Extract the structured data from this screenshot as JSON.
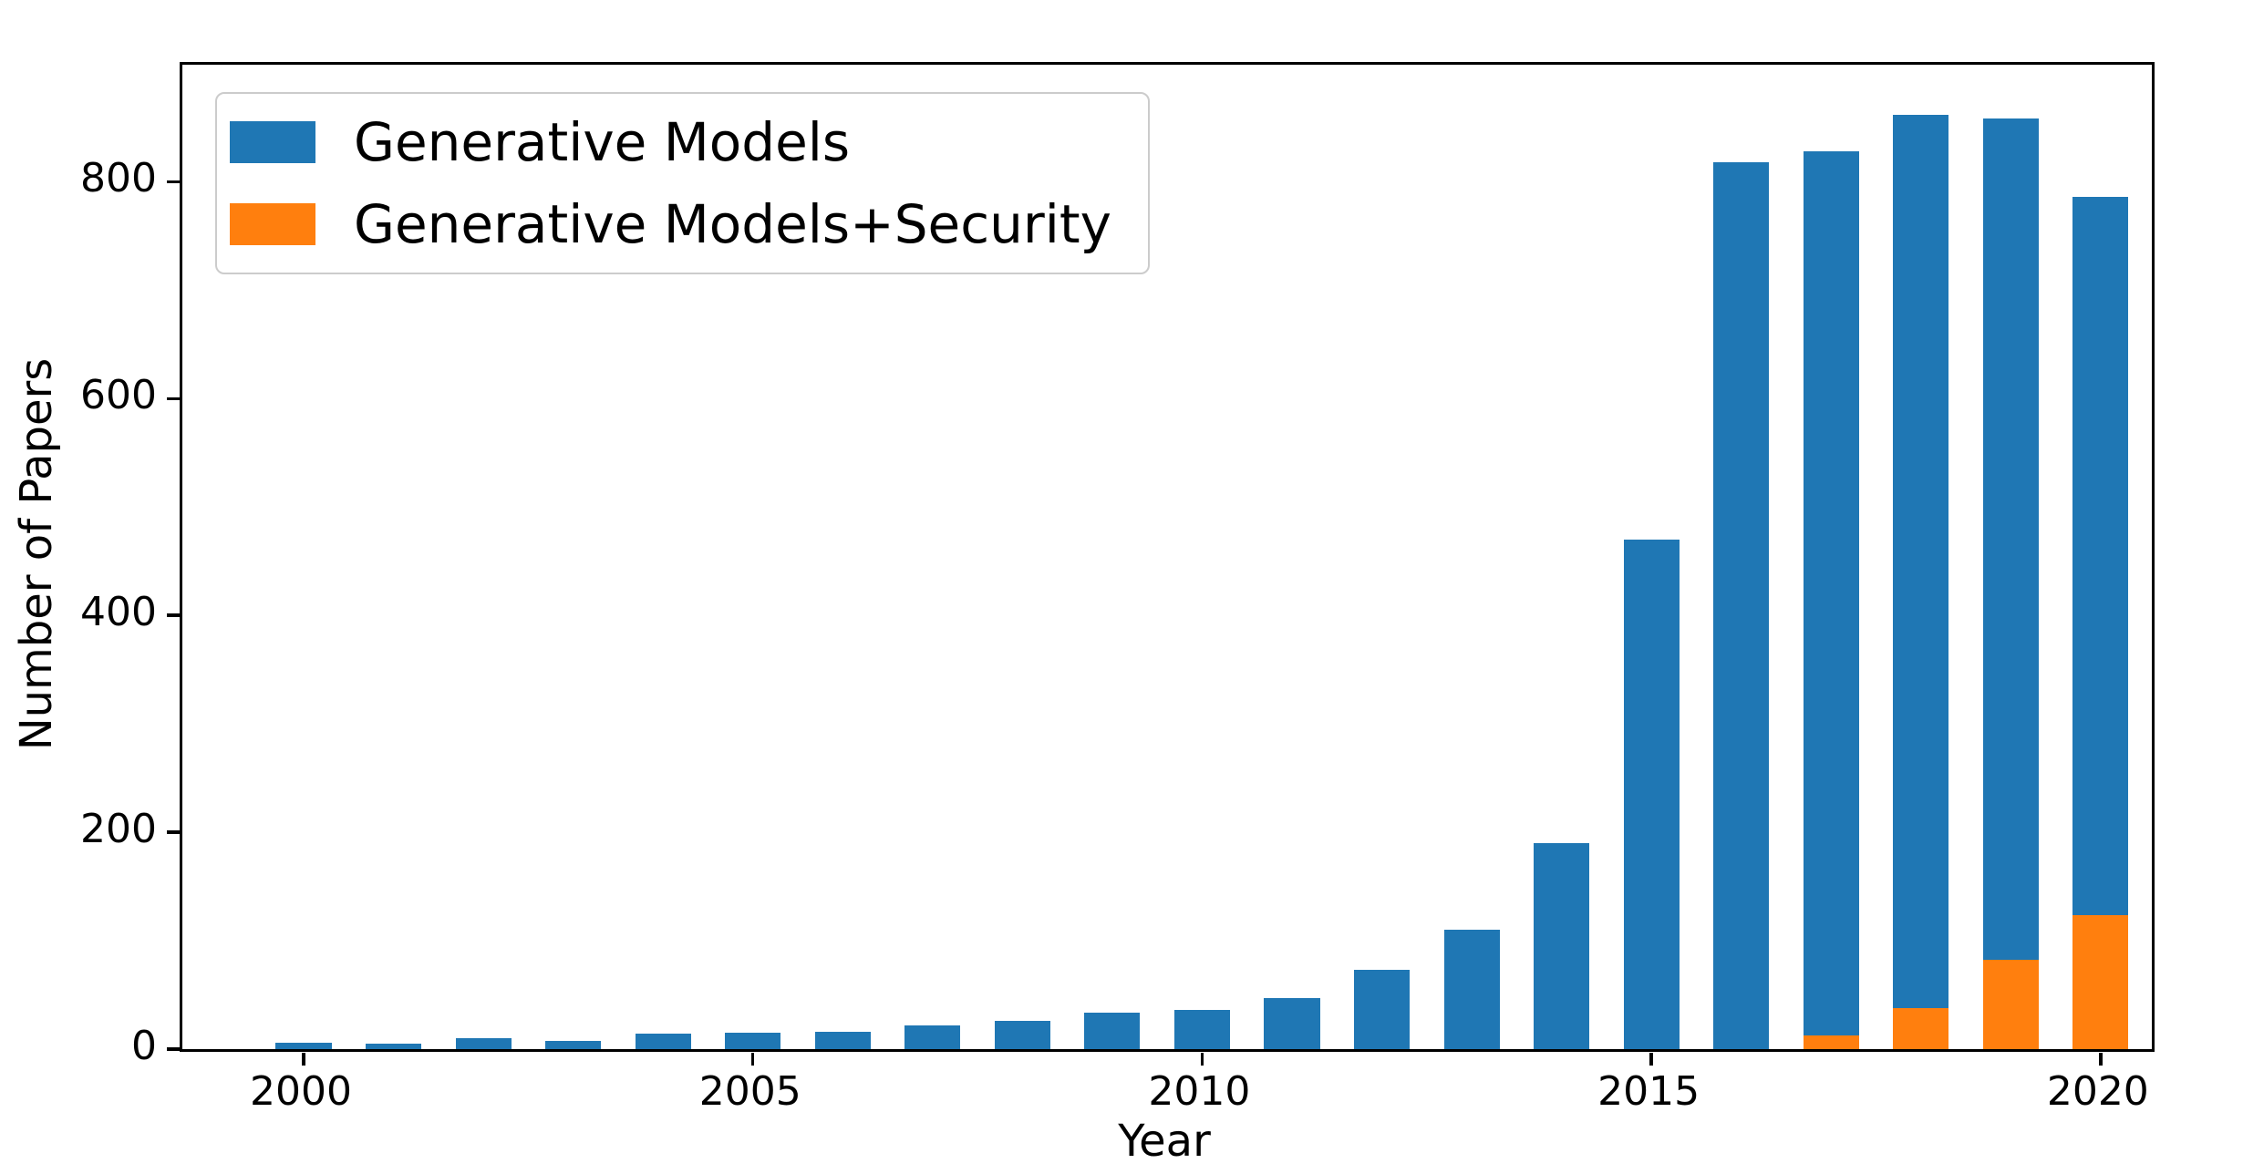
{
  "chart_data": {
    "type": "bar",
    "title": "",
    "xlabel": "Year",
    "ylabel": "Number of Papers",
    "x": [
      2000,
      2001,
      2002,
      2003,
      2004,
      2005,
      2006,
      2007,
      2008,
      2009,
      2010,
      2011,
      2012,
      2013,
      2014,
      2015,
      2016,
      2017,
      2018,
      2019,
      2020
    ],
    "series": [
      {
        "name": "Generative Models",
        "color": "#1f77b4",
        "values": [
          6,
          5,
          10,
          8,
          14,
          15,
          16,
          22,
          26,
          34,
          36,
          47,
          73,
          110,
          190,
          470,
          818,
          828,
          862,
          858,
          786
        ]
      },
      {
        "name": "Generative Models+Security",
        "color": "#ff7f0e",
        "values": [
          0,
          0,
          0,
          0,
          0,
          0,
          0,
          0,
          0,
          0,
          0,
          0,
          0,
          0,
          0,
          0,
          0,
          13,
          38,
          82,
          124
        ]
      }
    ],
    "overlay": "second series drawn in front of first, both baselined at 0",
    "xticks": [
      2000,
      2005,
      2010,
      2015,
      2020
    ],
    "yticks": [
      0,
      200,
      400,
      600,
      800
    ],
    "ylim": [
      0,
      908
    ],
    "xlim": [
      1998.65,
      2020.57
    ],
    "bar_width_years": 0.62,
    "grid": false,
    "legend_position": "upper left",
    "axis_color": "#000000",
    "background_color": "#ffffff"
  }
}
